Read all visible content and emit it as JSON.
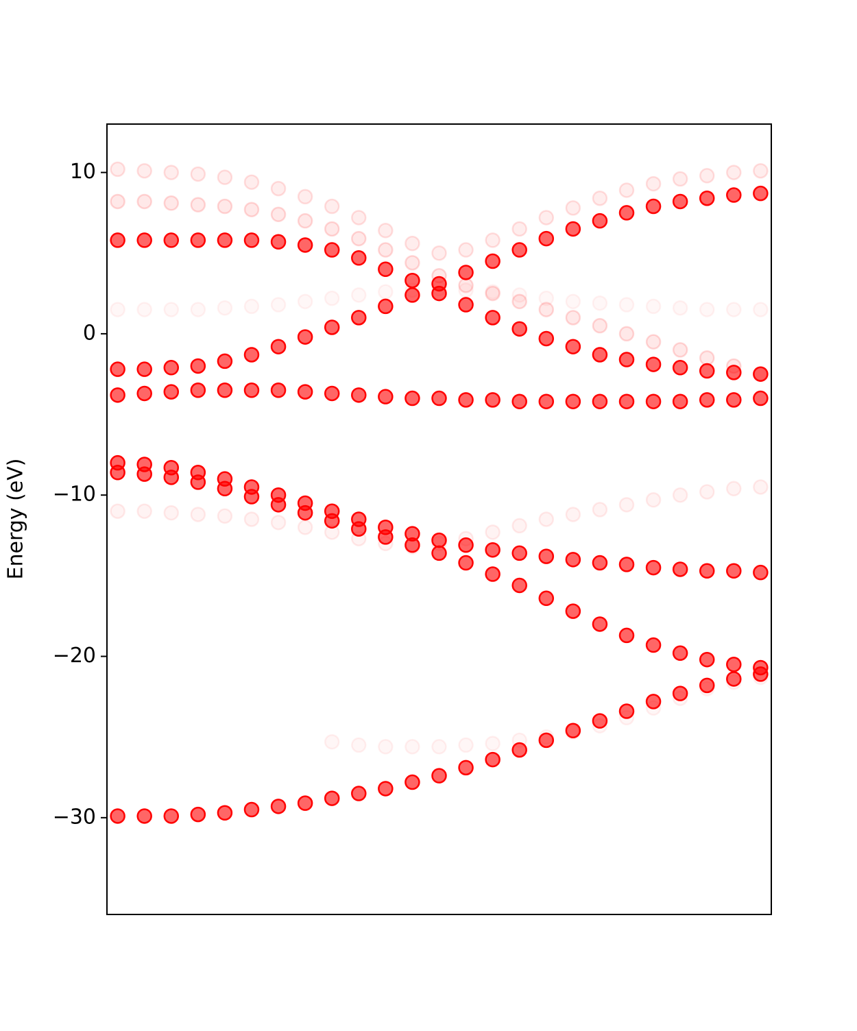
{
  "chart_data": {
    "type": "band-scatter",
    "y_label": "Energy (eV)",
    "x": [
      0,
      1,
      2,
      3,
      4,
      5,
      6,
      7,
      8,
      9,
      10,
      11,
      12,
      13,
      14,
      15,
      16,
      17,
      18,
      19,
      20,
      21,
      22,
      23,
      24
    ],
    "xlim": [
      -0.4,
      24.4
    ],
    "ylim": [
      -36,
      13
    ],
    "yticks": [
      {
        "value": -30,
        "label": "−30"
      },
      {
        "value": -20,
        "label": "−20"
      },
      {
        "value": -10,
        "label": "−10"
      },
      0,
      10
    ],
    "series": [
      {
        "color": "#ff0000",
        "alpha": 0.12,
        "values": [
          10.2,
          10.1,
          10.0,
          9.9,
          9.7,
          9.4,
          9.0,
          8.5,
          7.9,
          7.2,
          6.4,
          5.6,
          5.0,
          5.2,
          5.8,
          6.5,
          7.2,
          7.8,
          8.4,
          8.9,
          9.3,
          9.6,
          9.8,
          10.0,
          10.1
        ]
      },
      {
        "color": "#ff0000",
        "alpha": 0.15,
        "values": [
          8.2,
          8.2,
          8.1,
          8.0,
          7.9,
          7.7,
          7.4,
          7.0,
          6.5,
          5.9,
          5.2,
          4.4,
          3.6,
          3.0,
          2.5,
          2.0,
          1.5,
          1.0,
          0.5,
          0.0,
          -0.5,
          -1.0,
          -1.5,
          -2.0,
          -2.5
        ]
      },
      {
        "color": "#ff0000",
        "alpha": 0.05,
        "values": [
          1.5,
          1.5,
          1.5,
          1.5,
          1.6,
          1.7,
          1.8,
          2.0,
          2.2,
          2.4,
          2.6,
          2.7,
          2.8,
          2.7,
          2.6,
          2.4,
          2.2,
          2.0,
          1.9,
          1.8,
          1.7,
          1.6,
          1.5,
          1.5,
          1.5
        ]
      },
      {
        "color": "#ff0000",
        "alpha": 0.08,
        "values": [
          -11.0,
          -11.0,
          -11.1,
          -11.2,
          -11.3,
          -11.5,
          -11.7,
          -12.0,
          -12.3,
          -12.7,
          -13.0,
          -13.2,
          -13.0,
          -12.7,
          -12.3,
          -11.9,
          -11.5,
          -11.2,
          -10.9,
          -10.6,
          -10.3,
          -10.0,
          -9.8,
          -9.6,
          -9.5
        ]
      },
      {
        "color": "#ff0000",
        "alpha": 0.06,
        "values": [
          null,
          null,
          null,
          null,
          null,
          null,
          null,
          null,
          -25.3,
          -25.5,
          -25.6,
          -25.6,
          -25.6,
          -25.5,
          -25.4,
          -25.2,
          -25.0,
          -24.7,
          -24.3,
          -23.8,
          -23.2,
          -22.6,
          -22.0,
          -21.6,
          -21.3
        ]
      },
      {
        "color": "#ff0000",
        "alpha": 1,
        "values": [
          5.8,
          5.8,
          5.8,
          5.8,
          5.8,
          5.8,
          5.7,
          5.5,
          5.2,
          4.7,
          4.0,
          3.3,
          2.5,
          1.8,
          1.0,
          0.3,
          -0.3,
          -0.8,
          -1.3,
          -1.6,
          -1.9,
          -2.1,
          -2.3,
          -2.4,
          -2.5
        ]
      },
      {
        "color": "#ff0000",
        "alpha": 1,
        "values": [
          -2.2,
          -2.2,
          -2.1,
          -2.0,
          -1.7,
          -1.3,
          -0.8,
          -0.2,
          0.4,
          1.0,
          1.7,
          2.4,
          3.1,
          3.8,
          4.5,
          5.2,
          5.9,
          6.5,
          7.0,
          7.5,
          7.9,
          8.2,
          8.4,
          8.6,
          8.7
        ]
      },
      {
        "color": "#ff0000",
        "alpha": 1,
        "values": [
          -3.8,
          -3.7,
          -3.6,
          -3.5,
          -3.5,
          -3.5,
          -3.5,
          -3.6,
          -3.7,
          -3.8,
          -3.9,
          -4.0,
          -4.0,
          -4.1,
          -4.1,
          -4.2,
          -4.2,
          -4.2,
          -4.2,
          -4.2,
          -4.2,
          -4.2,
          -4.1,
          -4.1,
          -4.0
        ]
      },
      {
        "color": "#ff0000",
        "alpha": 1,
        "values": [
          -8.0,
          -8.1,
          -8.3,
          -8.6,
          -9.0,
          -9.5,
          -10.0,
          -10.5,
          -11.0,
          -11.5,
          -12.0,
          -12.4,
          -12.8,
          -13.1,
          -13.4,
          -13.6,
          -13.8,
          -14.0,
          -14.2,
          -14.3,
          -14.5,
          -14.6,
          -14.7,
          -14.7,
          -14.8
        ]
      },
      {
        "color": "#ff0000",
        "alpha": 1,
        "values": [
          -8.6,
          -8.7,
          -8.9,
          -9.2,
          -9.6,
          -10.1,
          -10.6,
          -11.1,
          -11.6,
          -12.1,
          -12.6,
          -13.1,
          -13.6,
          -14.2,
          -14.9,
          -15.6,
          -16.4,
          -17.2,
          -18.0,
          -18.7,
          -19.3,
          -19.8,
          -20.2,
          -20.5,
          -20.7
        ]
      },
      {
        "color": "#ff0000",
        "alpha": 1,
        "values": [
          -29.9,
          -29.9,
          -29.9,
          -29.8,
          -29.7,
          -29.5,
          -29.3,
          -29.1,
          -28.8,
          -28.5,
          -28.2,
          -27.8,
          -27.4,
          -26.9,
          -26.4,
          -25.8,
          -25.2,
          -24.6,
          -24.0,
          -23.4,
          -22.8,
          -22.3,
          -21.8,
          -21.4,
          -21.1
        ]
      }
    ]
  }
}
